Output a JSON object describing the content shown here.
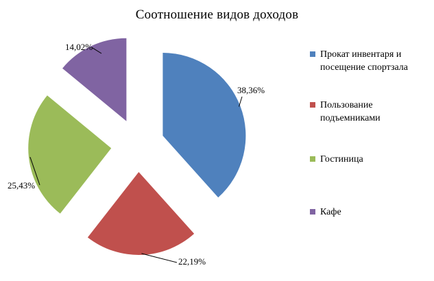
{
  "chart_data": {
    "type": "pie",
    "title": "Соотношение видов доходов",
    "slices": [
      {
        "name": "Прокат инвентаря и посещение спортзала",
        "value": 38.36,
        "label": "38,36%",
        "color": "#4F81BD"
      },
      {
        "name": "Пользование подъемниками",
        "value": 22.19,
        "label": "22,19%",
        "color": "#C0504D"
      },
      {
        "name": "Гостиница",
        "value": 25.43,
        "label": "25,43%",
        "color": "#9BBB59"
      },
      {
        "name": "Кафе",
        "value": 14.02,
        "label": "14,02%",
        "color": "#8064A2"
      }
    ],
    "legend_position": "right",
    "exploded": true
  }
}
